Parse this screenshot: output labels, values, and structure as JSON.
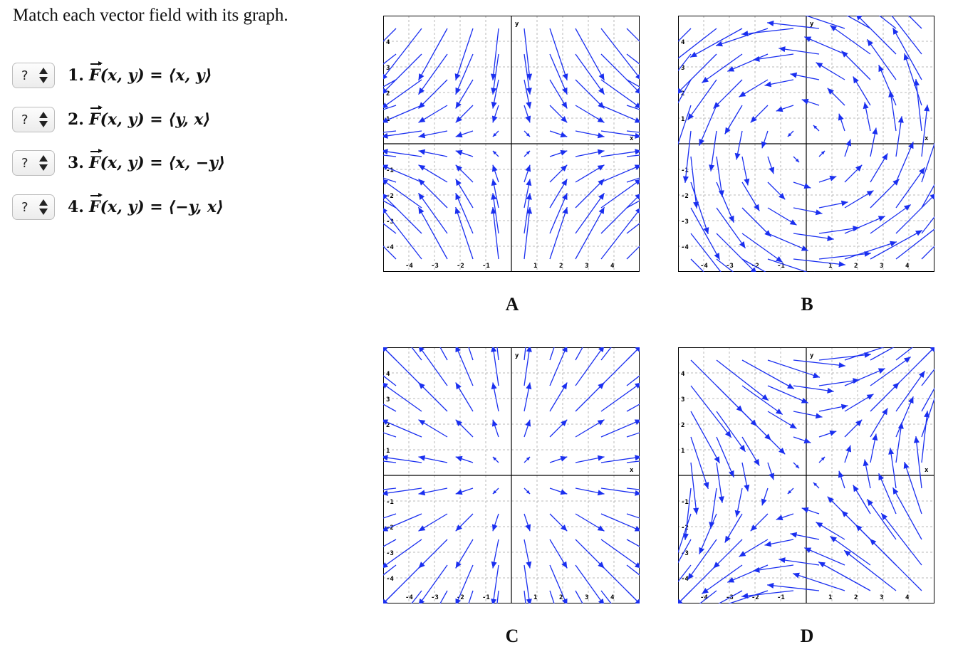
{
  "instructions": "Match each vector field with its graph.",
  "questions": [
    {
      "id": 1,
      "number": "1.",
      "answer": "?",
      "formula": "(x, y) = ⟨x, y⟩"
    },
    {
      "id": 2,
      "number": "2.",
      "answer": "?",
      "formula": "(x, y) = ⟨y, x⟩"
    },
    {
      "id": 3,
      "number": "3.",
      "answer": "?",
      "formula": "(x, y) = ⟨x, −y⟩"
    },
    {
      "id": 4,
      "number": "4.",
      "answer": "?",
      "formula": "(x, y) = ⟨−y, x⟩"
    }
  ],
  "fvec_symbol": "F",
  "graphs": [
    {
      "label": "A",
      "field": "x,-y",
      "axis_x": "x",
      "axis_y": "y"
    },
    {
      "label": "B",
      "field": "-y,x",
      "axis_x": "x",
      "axis_y": "y"
    },
    {
      "label": "C",
      "field": "x,y",
      "axis_x": "x",
      "axis_y": "y"
    },
    {
      "label": "D",
      "field": "y,x",
      "axis_x": "x",
      "axis_y": "y"
    }
  ],
  "tick_labels": [
    "-4",
    "-3",
    "-2",
    "-1",
    "1",
    "2",
    "3",
    "4"
  ],
  "arrow_color": "#1a2ff0",
  "grid_color": "#b8b8b8",
  "axis_color": "#000000"
}
